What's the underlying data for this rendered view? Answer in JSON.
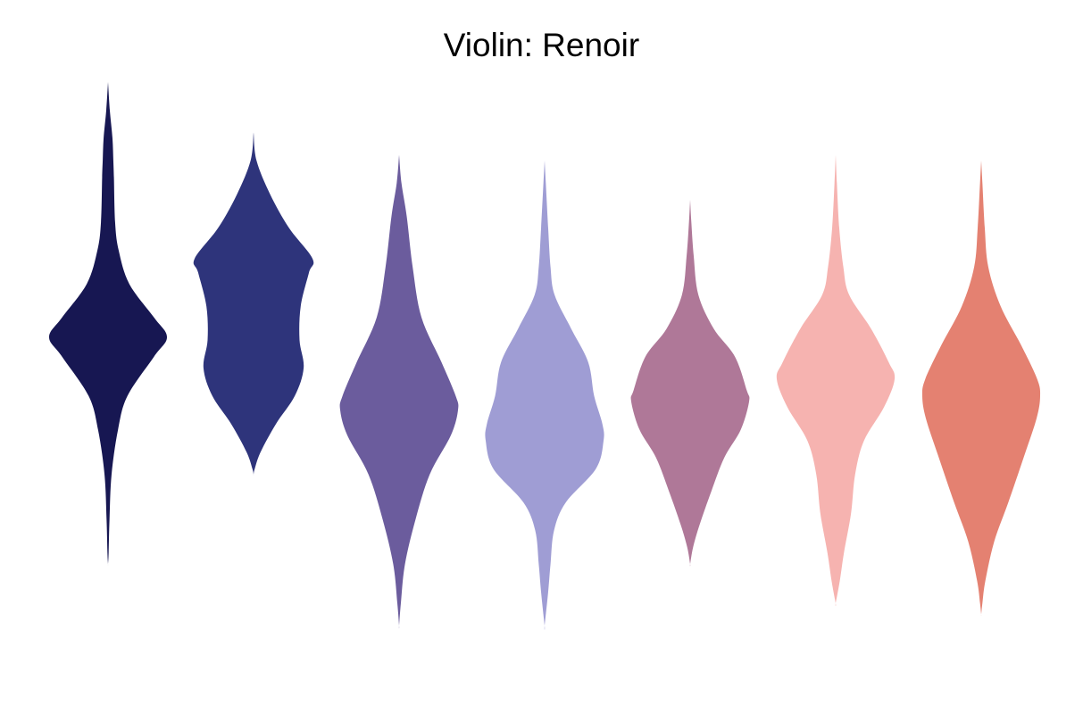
{
  "chart_data": {
    "type": "violin",
    "title": "Violin: Renoir",
    "xlabel": "",
    "ylabel": "",
    "axes_visible": false,
    "grid": false,
    "legend": "none",
    "ylim": [
      0,
      1
    ],
    "series": [
      {
        "color": "#171752",
        "profile": [
          [
            0.0,
            0.0
          ],
          [
            0.05,
            0.03
          ],
          [
            0.1,
            0.075
          ],
          [
            0.14,
            0.09
          ],
          [
            0.17,
            0.1
          ],
          [
            0.25,
            0.12
          ],
          [
            0.3,
            0.18
          ],
          [
            0.36,
            0.36
          ],
          [
            0.42,
            0.78
          ],
          [
            0.455,
            1.0
          ],
          [
            0.49,
            0.78
          ],
          [
            0.56,
            0.33
          ],
          [
            0.62,
            0.17
          ],
          [
            0.7,
            0.06
          ],
          [
            0.78,
            0.025
          ],
          [
            0.84,
            0.01
          ],
          [
            0.86,
            0.0
          ]
        ]
      },
      {
        "color": "#2e347b",
        "profile": [
          [
            0.09,
            0.0
          ],
          [
            0.14,
            0.05
          ],
          [
            0.2,
            0.28
          ],
          [
            0.26,
            0.6
          ],
          [
            0.315,
            1.0
          ],
          [
            0.34,
            0.94
          ],
          [
            0.4,
            0.8
          ],
          [
            0.46,
            0.78
          ],
          [
            0.51,
            0.85
          ],
          [
            0.56,
            0.7
          ],
          [
            0.61,
            0.38
          ],
          [
            0.66,
            0.12
          ],
          [
            0.69,
            0.02
          ],
          [
            0.7,
            0.0
          ]
        ]
      },
      {
        "color": "#6b5c9d",
        "profile": [
          [
            0.13,
            0.0
          ],
          [
            0.18,
            0.04
          ],
          [
            0.24,
            0.13
          ],
          [
            0.33,
            0.23
          ],
          [
            0.42,
            0.38
          ],
          [
            0.5,
            0.72
          ],
          [
            0.56,
            0.96
          ],
          [
            0.585,
            1.0
          ],
          [
            0.63,
            0.88
          ],
          [
            0.7,
            0.52
          ],
          [
            0.78,
            0.28
          ],
          [
            0.86,
            0.1
          ],
          [
            0.93,
            0.03
          ],
          [
            0.97,
            0.0
          ]
        ]
      },
      {
        "color": "#9f9dd4",
        "profile": [
          [
            0.14,
            0.0
          ],
          [
            0.18,
            0.02
          ],
          [
            0.26,
            0.06
          ],
          [
            0.33,
            0.1
          ],
          [
            0.38,
            0.17
          ],
          [
            0.44,
            0.45
          ],
          [
            0.5,
            0.74
          ],
          [
            0.56,
            0.84
          ],
          [
            0.61,
            0.98
          ],
          [
            0.64,
            1.0
          ],
          [
            0.69,
            0.87
          ],
          [
            0.75,
            0.36
          ],
          [
            0.8,
            0.16
          ],
          [
            0.86,
            0.1
          ],
          [
            0.91,
            0.06
          ],
          [
            0.97,
            0.0
          ]
        ]
      },
      {
        "color": "#af7898",
        "profile": [
          [
            0.21,
            0.0
          ],
          [
            0.25,
            0.02
          ],
          [
            0.31,
            0.06
          ],
          [
            0.38,
            0.14
          ],
          [
            0.44,
            0.4
          ],
          [
            0.49,
            0.76
          ],
          [
            0.55,
            0.96
          ],
          [
            0.57,
            1.0
          ],
          [
            0.62,
            0.86
          ],
          [
            0.67,
            0.58
          ],
          [
            0.73,
            0.36
          ],
          [
            0.79,
            0.16
          ],
          [
            0.83,
            0.05
          ],
          [
            0.86,
            0.0
          ]
        ]
      },
      {
        "color": "#f6b3b0",
        "profile": [
          [
            0.13,
            0.0
          ],
          [
            0.18,
            0.02
          ],
          [
            0.26,
            0.06
          ],
          [
            0.33,
            0.13
          ],
          [
            0.38,
            0.23
          ],
          [
            0.44,
            0.6
          ],
          [
            0.5,
            0.9
          ],
          [
            0.53,
            1.0
          ],
          [
            0.58,
            0.82
          ],
          [
            0.64,
            0.48
          ],
          [
            0.7,
            0.33
          ],
          [
            0.77,
            0.26
          ],
          [
            0.84,
            0.14
          ],
          [
            0.89,
            0.07
          ],
          [
            0.93,
            0.0
          ]
        ]
      },
      {
        "color": "#e48171",
        "profile": [
          [
            0.14,
            0.0
          ],
          [
            0.18,
            0.02
          ],
          [
            0.26,
            0.06
          ],
          [
            0.33,
            0.12
          ],
          [
            0.4,
            0.33
          ],
          [
            0.47,
            0.68
          ],
          [
            0.53,
            0.95
          ],
          [
            0.56,
            1.0
          ],
          [
            0.6,
            0.94
          ],
          [
            0.67,
            0.72
          ],
          [
            0.75,
            0.46
          ],
          [
            0.82,
            0.22
          ],
          [
            0.89,
            0.07
          ],
          [
            0.93,
            0.02
          ],
          [
            0.95,
            0.0
          ]
        ]
      }
    ]
  }
}
